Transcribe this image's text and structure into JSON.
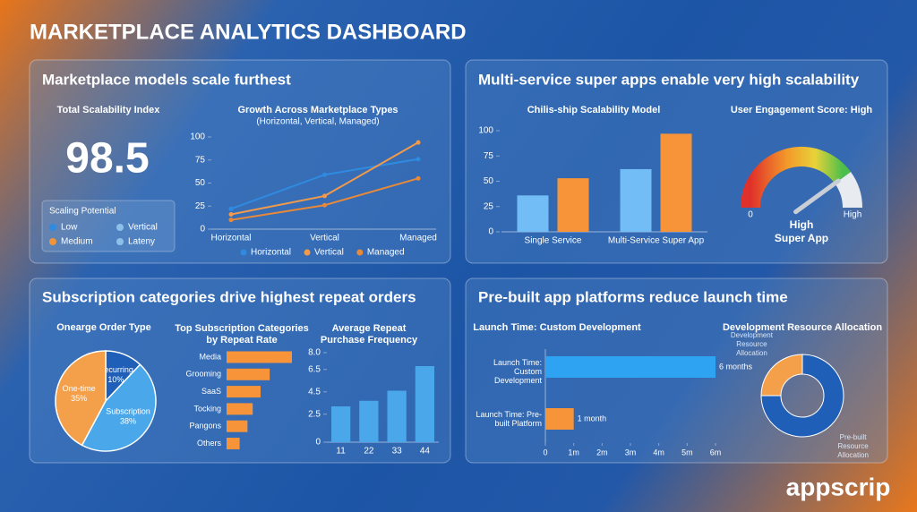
{
  "title": "MARKETPLACE ANALYTICS DASHBOARD",
  "brand": "appscrip",
  "panels": [
    "Marketplace models scale furthest",
    "Multi-service super apps enable very high scalability",
    "Subscription categories drive highest repeat orders",
    "Pre-built app platforms reduce launch time"
  ],
  "kpi": {
    "label": "Total Scalability Index",
    "value": 98.5
  },
  "scaling_legend": {
    "title": "Scaling Potential",
    "items": [
      {
        "name": "Low",
        "color": "#2f8be0"
      },
      {
        "name": "Vertical",
        "color": "#8fc0ea"
      },
      {
        "name": "Medium",
        "color": "#f0953a"
      },
      {
        "name": "Lateny",
        "color": "#8fc0ea"
      }
    ]
  },
  "chart_data": [
    {
      "type": "line",
      "title": "Growth Across Marketplace Types",
      "subtitle": "(Horizontal, Vertical, Managed)",
      "categories": [
        "Horizontal",
        "Vertical",
        "Managed"
      ],
      "series": [
        {
          "name": "Horizontal",
          "color": "#2f8be0",
          "values": [
            22,
            59,
            76
          ]
        },
        {
          "name": "Vertical",
          "color": "#f39a4a",
          "values": [
            16,
            36,
            94
          ]
        },
        {
          "name": "Managed",
          "color": "#e8893a",
          "values": [
            10,
            26,
            55
          ]
        }
      ],
      "ylim": [
        0,
        100
      ],
      "yticks": [
        0,
        25,
        50,
        75,
        100
      ]
    },
    {
      "type": "bar",
      "title": "Chilis-ship Scalability Model",
      "categories": [
        "Single Service",
        "Multi-Service Super App"
      ],
      "series": [
        {
          "color": "#72bdf5",
          "values": [
            36,
            62
          ]
        },
        {
          "color": "#f7943a",
          "values": [
            53,
            97
          ]
        }
      ],
      "ylim": [
        0,
        100
      ],
      "yticks": [
        0,
        25,
        50,
        75,
        100
      ]
    },
    {
      "type": "gauge",
      "title": "User Engagement Score: High",
      "value": 80,
      "ylim": [
        0,
        100
      ],
      "yticks": [
        0,
        {
          "value": 100,
          "label": "High"
        }
      ],
      "center_label": [
        "High",
        "Super App"
      ]
    },
    {
      "type": "pie",
      "title": "Onearge Order Type",
      "categories": [
        "Recurring",
        "Subscription",
        "One-time"
      ],
      "values": [
        10,
        38,
        35
      ],
      "value_labels": [
        "10%",
        "38%",
        "35%"
      ],
      "colors": [
        "#1f5fb8",
        "#4aa8ea",
        "#f4a04a"
      ]
    },
    {
      "type": "hbar",
      "title": "Top Subscription Categories by Repeat Rate",
      "categories": [
        "Media",
        "Grooming",
        "SaaS",
        "Tocking",
        "Pangons",
        "Others"
      ],
      "values": [
        100,
        66,
        52,
        40,
        32,
        20
      ],
      "color": "#f7943a"
    },
    {
      "type": "bar",
      "title": "Average Repeat Purchase Frequency",
      "categories": [
        "11",
        "22",
        "33",
        "44"
      ],
      "series": [
        {
          "color": "#4aa8ea",
          "values": [
            3.2,
            3.7,
            4.6,
            6.8
          ]
        }
      ],
      "ylim": [
        0,
        8
      ],
      "yticks": [
        0,
        2.5,
        4.5,
        6.5,
        {
          "value": 8,
          "label": "8.0"
        }
      ]
    },
    {
      "type": "hbar",
      "title": "Launch Time: Custom Development",
      "categories": [
        "Launch Time: Custom Development",
        "Launch Time: Pre-built Platform"
      ],
      "values": [
        6,
        1
      ],
      "value_labels": [
        "6 months",
        "1 month"
      ],
      "colors": [
        "#2ea3f2",
        "#f7943a"
      ],
      "xlim": [
        0,
        6
      ],
      "xticks": [
        0,
        {
          "value": 1,
          "label": "1m"
        },
        {
          "value": 2,
          "label": "2m"
        },
        {
          "value": 3,
          "label": "3m"
        },
        {
          "value": 4,
          "label": "4m"
        },
        {
          "value": 5,
          "label": "5m"
        },
        {
          "value": 6,
          "label": "6m"
        }
      ]
    },
    {
      "type": "donut",
      "title": "Development Resource Allocation",
      "categories": [
        "Pre-built Resource Allocation",
        "Development Resource Allocation"
      ],
      "values": [
        75,
        25
      ],
      "colors": [
        "#1f5fb8",
        "#f4a04a"
      ]
    }
  ]
}
